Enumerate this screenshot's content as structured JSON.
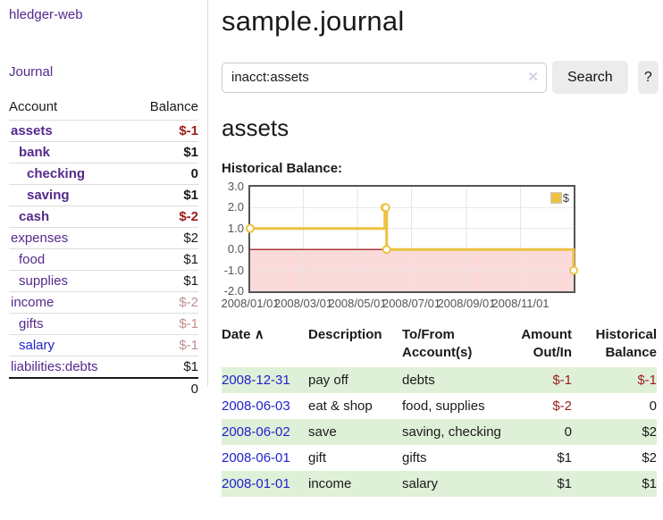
{
  "app": {
    "brand": "hledger-web"
  },
  "colors": {
    "link_purple": "#552a8c",
    "link_blue": "#2222cc",
    "negative_strong": "#9b1c1c",
    "negative_faded": "#bf8f8f",
    "row_green": "#dff0d8",
    "series_gold": "#edc240"
  },
  "sidebar": {
    "nav": {
      "journal": "Journal"
    },
    "accounts": {
      "headers": {
        "account": "Account",
        "balance": "Balance"
      },
      "rows": [
        {
          "name": "assets",
          "balance": "$-1"
        },
        {
          "name": "bank",
          "balance": "$1"
        },
        {
          "name": "checking",
          "balance": "0"
        },
        {
          "name": "saving",
          "balance": "$1"
        },
        {
          "name": "cash",
          "balance": "$-2"
        },
        {
          "name": "expenses",
          "balance": "$2"
        },
        {
          "name": "food",
          "balance": "$1"
        },
        {
          "name": "supplies",
          "balance": "$1"
        },
        {
          "name": "income",
          "balance": "$-2"
        },
        {
          "name": "gifts",
          "balance": "$-1"
        },
        {
          "name": "salary",
          "balance": "$-1"
        },
        {
          "name": "liabilities:debts",
          "balance": "$1"
        }
      ],
      "total": "0"
    }
  },
  "main": {
    "title": "sample.journal",
    "search": {
      "value": "inacct:assets",
      "clear_icon": "✕",
      "search_label": "Search",
      "help_label": "?"
    },
    "account_heading": "assets",
    "chart_label": "Historical Balance:"
  },
  "chart_data": {
    "type": "line",
    "title": "Historical Balance",
    "step": true,
    "xlim": [
      "2008-01-01",
      "2008-12-31"
    ],
    "ylim": [
      -2,
      3
    ],
    "yticks": [
      3.0,
      2.0,
      1.0,
      0.0,
      -1.0,
      -2.0
    ],
    "ytick_labels": [
      "3.0",
      "2.0",
      "1.0",
      "0.0",
      "-1.0",
      "-2.0"
    ],
    "xticks": [
      "2008/01/01",
      "2008/03/01",
      "2008/05/01",
      "2008/07/01",
      "2008/09/01",
      "2008/11/01"
    ],
    "series": [
      {
        "name": "$",
        "color": "#edc240",
        "points": [
          {
            "x": "2008-01-01",
            "y": 1
          },
          {
            "x": "2008-06-01",
            "y": 2
          },
          {
            "x": "2008-06-02",
            "y": 2
          },
          {
            "x": "2008-06-03",
            "y": 0
          },
          {
            "x": "2008-12-31",
            "y": -1
          }
        ]
      }
    ],
    "legend": {
      "label": "$",
      "position": "top-right"
    },
    "grid": true,
    "negative_region_color": "#fbdada",
    "zero_line_color": "#8b0000",
    "grid_color": "#e7e7e7",
    "border_color": "#545454"
  },
  "transactions": {
    "headers": {
      "date": "Date",
      "sort_icon": "∧",
      "description": "Description",
      "tofrom": "To/From Account(s)",
      "amount": "Amount Out/In",
      "balance": "Historical Balance"
    },
    "rows": [
      {
        "date": "2008-12-31",
        "description": "pay off",
        "accounts": "debts",
        "amount": "$-1",
        "balance": "$-1"
      },
      {
        "date": "2008-06-03",
        "description": "eat & shop",
        "accounts": "food, supplies",
        "amount": "$-2",
        "balance": "0"
      },
      {
        "date": "2008-06-02",
        "description": "save",
        "accounts": "saving, checking",
        "amount": "0",
        "balance": "$2"
      },
      {
        "date": "2008-06-01",
        "description": "gift",
        "accounts": "gifts",
        "amount": "$1",
        "balance": "$2"
      },
      {
        "date": "2008-01-01",
        "description": "income",
        "accounts": "salary",
        "amount": "$1",
        "balance": "$1"
      }
    ]
  }
}
